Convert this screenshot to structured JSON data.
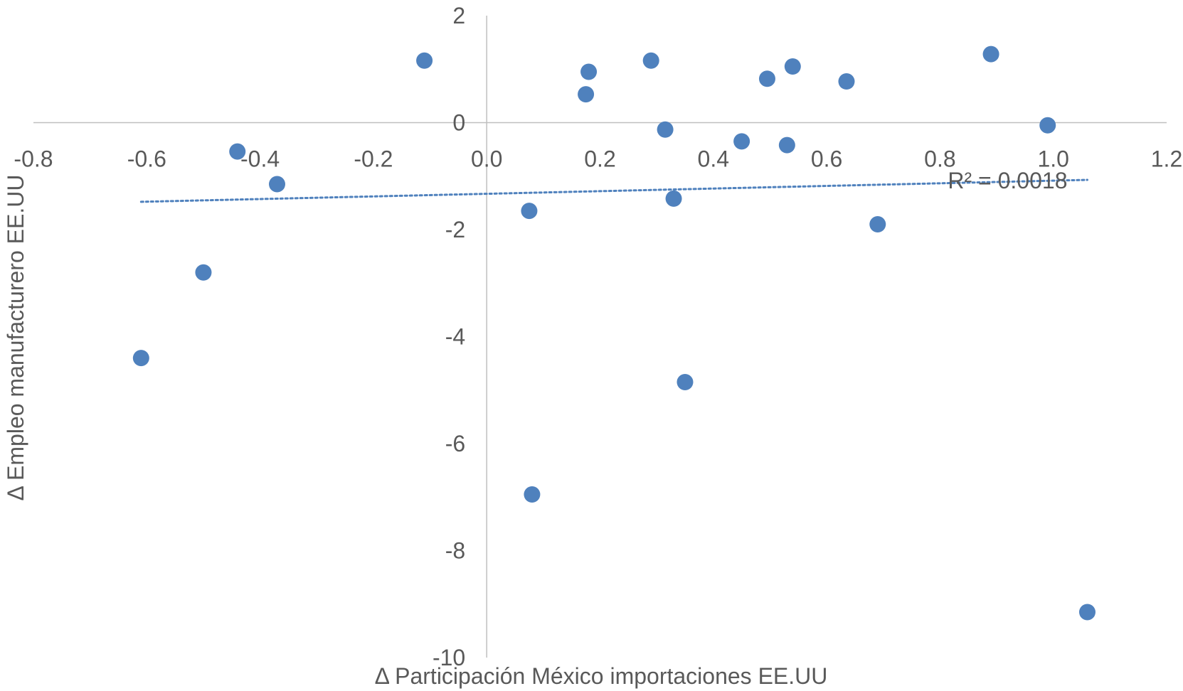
{
  "chart_data": {
    "type": "scatter",
    "xlabel": "Δ Participación México importaciones EE.UU",
    "ylabel": "Δ Empleo manufacturero EE.UU",
    "xlim": [
      -0.8,
      1.2
    ],
    "ylim": [
      -10,
      2
    ],
    "x_ticks": [
      -0.8,
      -0.6,
      -0.4,
      -0.2,
      0.0,
      0.2,
      0.4,
      0.6,
      0.8,
      1.0,
      1.2
    ],
    "x_tick_labels": [
      "-0.8",
      "-0.6",
      "-0.4",
      "-0.2",
      "0.0",
      "0.2",
      "0.4",
      "0.6",
      "0.8",
      "1.0",
      "1.2"
    ],
    "y_ticks": [
      2,
      0,
      -2,
      -4,
      -6,
      -8,
      -10
    ],
    "y_tick_labels": [
      "2",
      "0",
      "-2",
      "-4",
      "-6",
      "-8",
      "-10"
    ],
    "grid": false,
    "series": [
      {
        "color": "#4f81bd",
        "points": [
          {
            "x": -0.61,
            "y": -4.4
          },
          {
            "x": -0.5,
            "y": -2.8
          },
          {
            "x": -0.44,
            "y": -0.54
          },
          {
            "x": -0.37,
            "y": -1.15
          },
          {
            "x": -0.11,
            "y": 1.16
          },
          {
            "x": 0.075,
            "y": -1.65
          },
          {
            "x": 0.08,
            "y": -6.95
          },
          {
            "x": 0.175,
            "y": 0.53
          },
          {
            "x": 0.18,
            "y": 0.95
          },
          {
            "x": 0.29,
            "y": 1.16
          },
          {
            "x": 0.315,
            "y": -0.13
          },
          {
            "x": 0.33,
            "y": -1.42
          },
          {
            "x": 0.35,
            "y": -4.85
          },
          {
            "x": 0.45,
            "y": -0.35
          },
          {
            "x": 0.495,
            "y": 0.82
          },
          {
            "x": 0.53,
            "y": -0.42
          },
          {
            "x": 0.54,
            "y": 1.05
          },
          {
            "x": 0.635,
            "y": 0.77
          },
          {
            "x": 0.69,
            "y": -1.9
          },
          {
            "x": 0.89,
            "y": 1.28
          },
          {
            "x": 0.99,
            "y": -0.05
          },
          {
            "x": 1.06,
            "y": -9.15
          }
        ]
      }
    ],
    "trendline": {
      "type": "linear",
      "color": "#4f81bd",
      "style": "dotted",
      "x_range": [
        -0.61,
        1.06
      ],
      "y_start": -1.48,
      "y_end": -1.07,
      "label": "R² = 0.0018"
    }
  }
}
